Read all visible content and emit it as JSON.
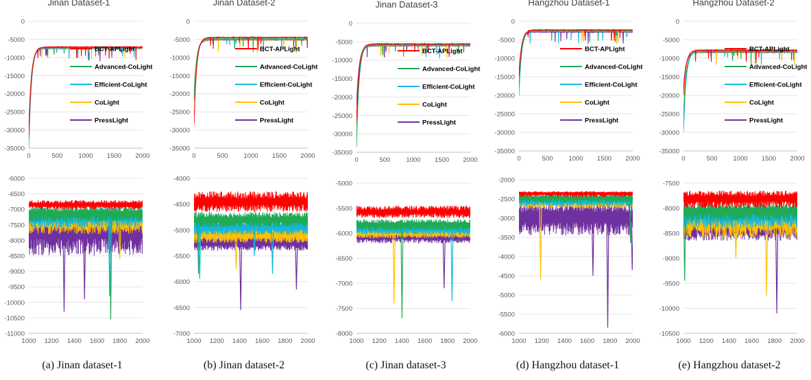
{
  "series_styles": [
    {
      "name": "BCT-APLight",
      "color": "#ff0000"
    },
    {
      "name": "Advanced-CoLight",
      "color": "#1faa55"
    },
    {
      "name": "Efficient-CoLight",
      "color": "#17b7dc"
    },
    {
      "name": "CoLight",
      "color": "#ffc000"
    },
    {
      "name": "PressLight",
      "color": "#7030a0"
    }
  ],
  "chart_data": [
    {
      "type": "line",
      "panel": "Jinan Dataset-1 (full)",
      "title": "Jinan Dataset-1",
      "xlim": [
        0,
        2000
      ],
      "ylim": [
        -35000,
        0
      ],
      "xticks": [
        0,
        500,
        1000,
        1500,
        2000
      ],
      "yticks": [
        0,
        -5000,
        -10000,
        -15000,
        -20000,
        -25000,
        -30000,
        -35000
      ],
      "legend": "right",
      "series": [
        {
          "name": "BCT-APLight",
          "start": -32000,
          "plateau": -7100
        },
        {
          "name": "Advanced-CoLight",
          "start": -31000,
          "plateau": -7200
        },
        {
          "name": "Efficient-CoLight",
          "start": -35000,
          "plateau": -7300
        },
        {
          "name": "CoLight",
          "start": -30000,
          "plateau": -7350
        },
        {
          "name": "PressLight",
          "start": -29000,
          "plateau": -7500
        }
      ]
    },
    {
      "type": "line",
      "panel": "Jinan Dataset-2 (full)",
      "title": "Jinan Dataset-2",
      "xlim": [
        0,
        2000
      ],
      "ylim": [
        -35000,
        0
      ],
      "xticks": [
        0,
        500,
        1000,
        1500,
        2000
      ],
      "yticks": [
        0,
        -5000,
        -10000,
        -15000,
        -20000,
        -25000,
        -30000,
        -35000
      ],
      "legend": "right",
      "series": [
        {
          "name": "BCT-APLight",
          "start": -28500,
          "plateau": -4450
        },
        {
          "name": "Advanced-CoLight",
          "start": -22000,
          "plateau": -4800
        },
        {
          "name": "Efficient-CoLight",
          "start": -21000,
          "plateau": -4950
        },
        {
          "name": "CoLight",
          "start": -20000,
          "plateau": -5050
        },
        {
          "name": "PressLight",
          "start": -20500,
          "plateau": -5150
        }
      ]
    },
    {
      "type": "line",
      "panel": "Jinan Dataset-3 (full)",
      "title": "Jinan Dataset-3",
      "xlim": [
        0,
        2000
      ],
      "ylim": [
        -35000,
        0
      ],
      "xticks": [
        0,
        500,
        1000,
        1500,
        2000
      ],
      "yticks": [
        0,
        -5000,
        -10000,
        -15000,
        -20000,
        -25000,
        -30000,
        -35000
      ],
      "legend": "right",
      "series": [
        {
          "name": "BCT-APLight",
          "start": -27000,
          "plateau": -5600
        },
        {
          "name": "Advanced-CoLight",
          "start": -33500,
          "plateau": -5850
        },
        {
          "name": "Efficient-CoLight",
          "start": -28000,
          "plateau": -5950
        },
        {
          "name": "CoLight",
          "start": -26500,
          "plateau": -6000
        },
        {
          "name": "PressLight",
          "start": -22500,
          "plateau": -6100
        }
      ]
    },
    {
      "type": "line",
      "panel": "Hangzhou Dataset-1 (full)",
      "title": "Hangzhou Dataset-1",
      "xlim": [
        0,
        2000
      ],
      "ylim": [
        -35000,
        0
      ],
      "xticks": [
        0,
        500,
        1000,
        1500,
        2000
      ],
      "yticks": [
        0,
        -5000,
        -10000,
        -15000,
        -20000,
        -25000,
        -30000,
        -35000
      ],
      "legend": "right",
      "series": [
        {
          "name": "BCT-APLight",
          "start": -15000,
          "plateau": -2350
        },
        {
          "name": "Advanced-CoLight",
          "start": -18000,
          "plateau": -2450
        },
        {
          "name": "Efficient-CoLight",
          "start": -20000,
          "plateau": -2550
        },
        {
          "name": "CoLight",
          "start": -16000,
          "plateau": -2600
        },
        {
          "name": "PressLight",
          "start": -14000,
          "plateau": -2900
        }
      ]
    },
    {
      "type": "line",
      "panel": "Hangzhou Dataset-2 (full)",
      "title": "Hangzhou Dataset-2",
      "xlim": [
        0,
        2000
      ],
      "ylim": [
        -35000,
        0
      ],
      "xticks": [
        0,
        500,
        1000,
        1500,
        2000
      ],
      "yticks": [
        0,
        -5000,
        -10000,
        -15000,
        -20000,
        -25000,
        -30000,
        -35000
      ],
      "legend": "right",
      "series": [
        {
          "name": "BCT-APLight",
          "start": -20000,
          "plateau": -7800
        },
        {
          "name": "Advanced-CoLight",
          "start": -27000,
          "plateau": -8050
        },
        {
          "name": "Efficient-CoLight",
          "start": -30000,
          "plateau": -8150
        },
        {
          "name": "CoLight",
          "start": -25000,
          "plateau": -8250
        },
        {
          "name": "PressLight",
          "start": -18000,
          "plateau": -8400
        }
      ]
    },
    {
      "type": "line",
      "panel": "Jinan Dataset-1 (zoom)",
      "title": "",
      "xlim": [
        1000,
        2000
      ],
      "ylim": [
        -11000,
        -6000
      ],
      "xticks": [
        1000,
        1200,
        1400,
        1600,
        1800,
        2000
      ],
      "yticks": [
        -6000,
        -6500,
        -7000,
        -7500,
        -8000,
        -8500,
        -9000,
        -9500,
        -10000,
        -10500,
        -11000
      ],
      "series": [
        {
          "name": "BCT-APLight",
          "mean": -6850,
          "band": [
            -7000,
            -6700
          ]
        },
        {
          "name": "Advanced-CoLight",
          "mean": -7150,
          "band": [
            -7400,
            -6900
          ]
        },
        {
          "name": "Efficient-CoLight",
          "mean": -7250,
          "band": [
            -7600,
            -6950
          ]
        },
        {
          "name": "CoLight",
          "mean": -7400,
          "band": [
            -7800,
            -7050
          ]
        },
        {
          "name": "PressLight",
          "mean": -7700,
          "band": [
            -8500,
            -7100
          ]
        }
      ],
      "spikes": [
        {
          "series": "PressLight",
          "x": 1310,
          "y": -10300
        },
        {
          "series": "PressLight",
          "x": 1490,
          "y": -9900
        },
        {
          "series": "Advanced-CoLight",
          "x": 1720,
          "y": -10550
        },
        {
          "series": "Efficient-CoLight",
          "x": 1710,
          "y": -9800
        },
        {
          "series": "CoLight",
          "x": 1800,
          "y": -8600
        }
      ]
    },
    {
      "type": "line",
      "panel": "Jinan Dataset-2 (zoom)",
      "title": "",
      "xlim": [
        1000,
        2000
      ],
      "ylim": [
        -7000,
        -4000
      ],
      "xticks": [
        1000,
        1200,
        1400,
        1600,
        1800,
        2000
      ],
      "yticks": [
        -4000,
        -4500,
        -5000,
        -5500,
        -6000,
        -6500,
        -7000
      ],
      "series": [
        {
          "name": "BCT-APLight",
          "mean": -4450,
          "band": [
            -4650,
            -4250
          ]
        },
        {
          "name": "Advanced-CoLight",
          "mean": -4800,
          "band": [
            -4950,
            -4650
          ]
        },
        {
          "name": "Efficient-CoLight",
          "mean": -4950,
          "band": [
            -5100,
            -4800
          ]
        },
        {
          "name": "CoLight",
          "mean": -5080,
          "band": [
            -5250,
            -4950
          ]
        },
        {
          "name": "PressLight",
          "mean": -5250,
          "band": [
            -5400,
            -5100
          ]
        }
      ],
      "spikes": [
        {
          "series": "Advanced-CoLight",
          "x": 1040,
          "y": -5850
        },
        {
          "series": "Efficient-CoLight",
          "x": 1050,
          "y": -5950
        },
        {
          "series": "CoLight",
          "x": 1370,
          "y": -5750
        },
        {
          "series": "PressLight",
          "x": 1410,
          "y": -6550
        },
        {
          "series": "Efficient-CoLight",
          "x": 1530,
          "y": -5500
        },
        {
          "series": "Efficient-CoLight",
          "x": 1690,
          "y": -5850
        },
        {
          "series": "PressLight",
          "x": 1900,
          "y": -6150
        }
      ]
    },
    {
      "type": "line",
      "panel": "Jinan Dataset-3 (zoom)",
      "title": "",
      "xlim": [
        1000,
        2000
      ],
      "ylim": [
        -8000,
        -5000
      ],
      "xticks": [
        1000,
        1200,
        1400,
        1600,
        1800,
        2000
      ],
      "yticks": [
        -5000,
        -5500,
        -6000,
        -6500,
        -7000,
        -7500,
        -8000
      ],
      "series": [
        {
          "name": "BCT-APLight",
          "mean": -5570,
          "band": [
            -5700,
            -5450
          ]
        },
        {
          "name": "Advanced-CoLight",
          "mean": -5830,
          "band": [
            -5950,
            -5720
          ]
        },
        {
          "name": "Efficient-CoLight",
          "mean": -5920,
          "band": [
            -6030,
            -5820
          ]
        },
        {
          "name": "CoLight",
          "mean": -5990,
          "band": [
            -6100,
            -5900
          ]
        },
        {
          "name": "PressLight",
          "mean": -6080,
          "band": [
            -6200,
            -5960
          ]
        }
      ],
      "spikes": [
        {
          "series": "CoLight",
          "x": 1330,
          "y": -7400
        },
        {
          "series": "Advanced-CoLight",
          "x": 1400,
          "y": -7700
        },
        {
          "series": "PressLight",
          "x": 1770,
          "y": -7100
        },
        {
          "series": "Efficient-CoLight",
          "x": 1840,
          "y": -7350
        }
      ]
    },
    {
      "type": "line",
      "panel": "Hangzhou Dataset-1 (zoom)",
      "title": "",
      "xlim": [
        1000,
        2000
      ],
      "ylim": [
        -6000,
        -2000
      ],
      "xticks": [
        1000,
        1200,
        1400,
        1600,
        1800,
        2000
      ],
      "yticks": [
        -2000,
        -2500,
        -3000,
        -3500,
        -4000,
        -4500,
        -5000,
        -5500,
        -6000
      ],
      "series": [
        {
          "name": "BCT-APLight",
          "mean": -2350,
          "band": [
            -2450,
            -2300
          ]
        },
        {
          "name": "Advanced-CoLight",
          "mean": -2470,
          "band": [
            -2600,
            -2380
          ]
        },
        {
          "name": "Efficient-CoLight",
          "mean": -2550,
          "band": [
            -2700,
            -2450
          ]
        },
        {
          "name": "CoLight",
          "mean": -2600,
          "band": [
            -2750,
            -2500
          ]
        },
        {
          "name": "PressLight",
          "mean": -2950,
          "band": [
            -3450,
            -2600
          ]
        }
      ],
      "spikes": [
        {
          "series": "CoLight",
          "x": 1190,
          "y": -4600
        },
        {
          "series": "PressLight",
          "x": 1650,
          "y": -4500
        },
        {
          "series": "PressLight",
          "x": 1780,
          "y": -5850
        },
        {
          "series": "Advanced-CoLight",
          "x": 1980,
          "y": -3650
        },
        {
          "series": "PressLight",
          "x": 1995,
          "y": -4350
        }
      ]
    },
    {
      "type": "line",
      "panel": "Hangzhou Dataset-2 (zoom)",
      "title": "",
      "xlim": [
        1000,
        2000
      ],
      "ylim": [
        -10500,
        -7500
      ],
      "xticks": [
        1000,
        1200,
        1400,
        1600,
        1800,
        2000
      ],
      "yticks": [
        -7500,
        -8000,
        -8500,
        -9000,
        -9500,
        -10000,
        -10500
      ],
      "series": [
        {
          "name": "BCT-APLight",
          "mean": -7800,
          "band": [
            -8000,
            -7650
          ]
        },
        {
          "name": "Advanced-CoLight",
          "mean": -8050,
          "band": [
            -8250,
            -7900
          ]
        },
        {
          "name": "Efficient-CoLight",
          "mean": -8150,
          "band": [
            -8400,
            -7950
          ]
        },
        {
          "name": "CoLight",
          "mean": -8250,
          "band": [
            -8600,
            -8000
          ]
        },
        {
          "name": "PressLight",
          "mean": -8400,
          "band": [
            -8650,
            -8100
          ]
        }
      ],
      "spikes": [
        {
          "series": "Advanced-CoLight",
          "x": 1010,
          "y": -9450
        },
        {
          "series": "CoLight",
          "x": 1460,
          "y": -9000
        },
        {
          "series": "CoLight",
          "x": 1730,
          "y": -9750
        },
        {
          "series": "PressLight",
          "x": 1820,
          "y": -10100
        }
      ]
    }
  ],
  "captions": [
    "(a) Jinan dataset-1",
    "(b) Jinan dataset-2",
    "(c) Jinan dataset-3",
    "(d) Hangzhou dataset-1",
    "(e) Hangzhou dataset-2"
  ]
}
